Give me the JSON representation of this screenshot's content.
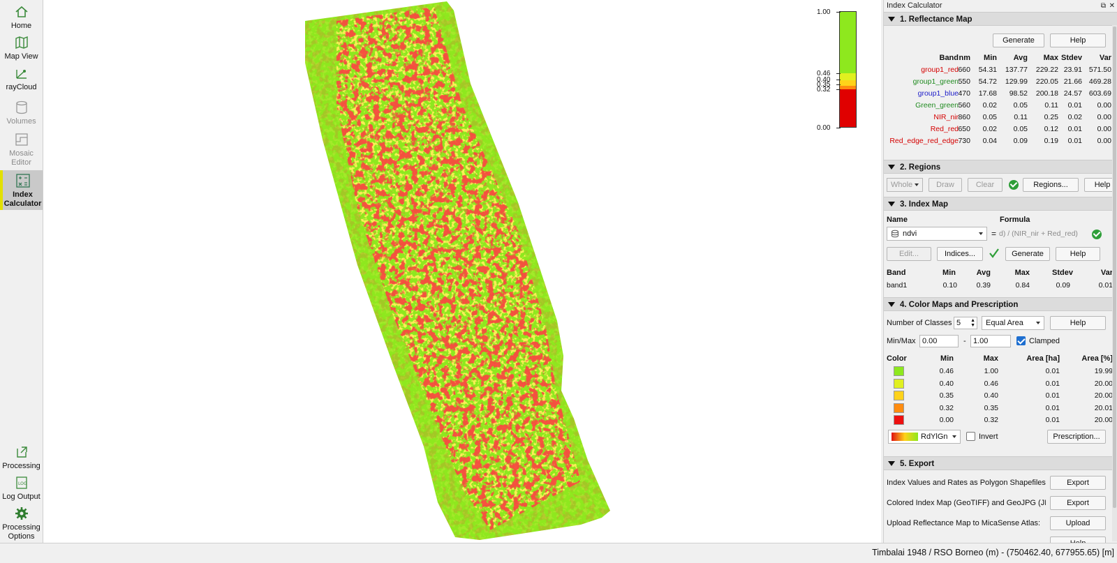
{
  "sidebar": {
    "items": [
      {
        "label": "Home",
        "icon": "home-icon"
      },
      {
        "label": "Map View",
        "icon": "map-icon"
      },
      {
        "label": "rayCloud",
        "icon": "raycloud-icon"
      },
      {
        "label": "Volumes",
        "icon": "volumes-icon"
      },
      {
        "label": "Mosaic",
        "label2": "Editor",
        "icon": "mosaic-editor-icon"
      },
      {
        "label": "Index",
        "label2": "Calculator",
        "icon": "index-calculator-icon"
      },
      {
        "label": "Processing",
        "icon": "processing-icon"
      },
      {
        "label": "Log Output",
        "icon": "log-output-icon"
      },
      {
        "label": "Processing",
        "label2": "Options",
        "icon": "gear-icon"
      }
    ]
  },
  "legend": {
    "ticks": [
      "1.00",
      "0.46",
      "0.40",
      "0.35",
      "0.32",
      "0.00"
    ]
  },
  "panel": {
    "title": "Index Calculator",
    "sections": {
      "s1": "1. Reflectance Map",
      "s2": "2. Regions",
      "s3": "3. Index Map",
      "s4": "4. Color Maps and Prescription",
      "s5": "5. Export"
    },
    "reflectance": {
      "generate": "Generate",
      "help": "Help",
      "headers": [
        "Band",
        "nm",
        "Min",
        "Avg",
        "Max",
        "Stdev",
        "Var"
      ],
      "rows": [
        {
          "band": "group1_red",
          "color": "#d40000",
          "nm": "660",
          "min": "54.31",
          "avg": "137.77",
          "max": "229.22",
          "stdev": "23.91",
          "var": "571.50"
        },
        {
          "band": "group1_green",
          "color": "#1f8a1f",
          "nm": "550",
          "min": "54.72",
          "avg": "129.99",
          "max": "220.05",
          "stdev": "21.66",
          "var": "469.28"
        },
        {
          "band": "group1_blue",
          "color": "#1c1cc8",
          "nm": "470",
          "min": "17.68",
          "avg": "98.52",
          "max": "200.18",
          "stdev": "24.57",
          "var": "603.69"
        },
        {
          "band": "Green_green",
          "color": "#1f8a1f",
          "nm": "560",
          "min": "0.02",
          "avg": "0.05",
          "max": "0.11",
          "stdev": "0.01",
          "var": "0.00"
        },
        {
          "band": "NIR_nir",
          "color": "#d40000",
          "nm": "860",
          "min": "0.05",
          "avg": "0.11",
          "max": "0.25",
          "stdev": "0.02",
          "var": "0.00"
        },
        {
          "band": "Red_red",
          "color": "#d40000",
          "nm": "650",
          "min": "0.02",
          "avg": "0.05",
          "max": "0.12",
          "stdev": "0.01",
          "var": "0.00"
        },
        {
          "band": "Red_edge_red_edge",
          "color": "#d40000",
          "nm": "730",
          "min": "0.04",
          "avg": "0.09",
          "max": "0.19",
          "stdev": "0.01",
          "var": "0.00"
        }
      ]
    },
    "regions": {
      "mode": "Whole",
      "draw": "Draw",
      "clear": "Clear",
      "regions_btn": "Regions...",
      "help": "Help"
    },
    "index_map": {
      "name_label": "Name",
      "formula_label": "Formula",
      "name_value": "ndvi",
      "equals": "=",
      "formula_value": "d) / (NIR_nir + Red_red)",
      "edit": "Edit...",
      "indices": "Indices...",
      "generate": "Generate",
      "help": "Help",
      "headers": [
        "Band",
        "Min",
        "Avg",
        "Max",
        "Stdev",
        "Var"
      ],
      "row": {
        "band": "band1",
        "min": "0.10",
        "avg": "0.39",
        "max": "0.84",
        "stdev": "0.09",
        "var": "0.01"
      }
    },
    "color_maps": {
      "classes_label": "Number of Classes",
      "classes_value": "5",
      "method": "Equal Area",
      "help": "Help",
      "minmax_label": "Min/Max",
      "min_value": "0.00",
      "dash": "-",
      "max_value": "1.00",
      "clamped": "Clamped",
      "headers": [
        "Color",
        "Min",
        "Max",
        "Area [ha]",
        "Area [%]"
      ],
      "rows": [
        {
          "color": "#8ee81e",
          "min": "0.46",
          "max": "1.00",
          "area_ha": "0.01",
          "area_pct": "19.99"
        },
        {
          "color": "#e0f020",
          "min": "0.40",
          "max": "0.46",
          "area_ha": "0.01",
          "area_pct": "20.00"
        },
        {
          "color": "#ffd21a",
          "min": "0.35",
          "max": "0.40",
          "area_ha": "0.01",
          "area_pct": "20.00"
        },
        {
          "color": "#ff8c10",
          "min": "0.32",
          "max": "0.35",
          "area_ha": "0.01",
          "area_pct": "20.01"
        },
        {
          "color": "#ee1010",
          "min": "0.00",
          "max": "0.32",
          "area_ha": "0.01",
          "area_pct": "20.00"
        }
      ],
      "colormap": "RdYlGn",
      "invert": "Invert",
      "prescription": "Prescription..."
    },
    "export": {
      "row1": "Index Values and Rates as Polygon Shapefiles (:",
      "row2": "Colored Index Map (GeoTIFF) and GeoJPG (JPG)",
      "row3": "Upload Reflectance Map to MicaSense Atlas:",
      "export": "Export",
      "upload": "Upload",
      "help": "Help"
    }
  },
  "status": {
    "text": "Timbalai 1948 / RSO Borneo (m) - (750462.40, 677955.65) [m]"
  }
}
